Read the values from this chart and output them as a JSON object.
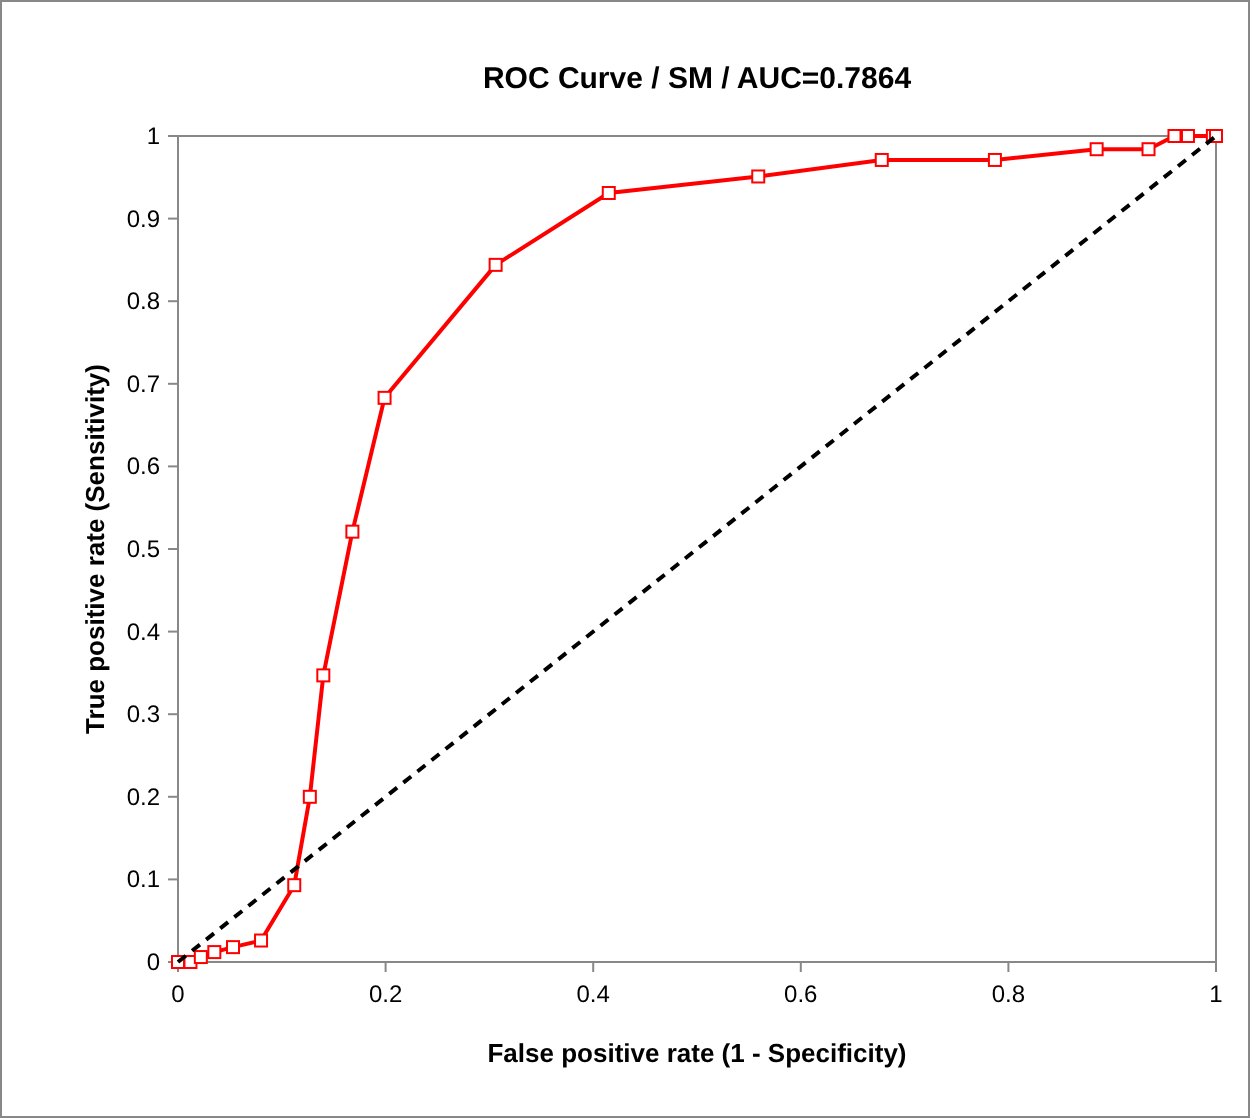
{
  "chart_data": {
    "type": "line",
    "title": "ROC Curve / SM / AUC=0.7864",
    "xlabel": "False positive rate (1 - Specificity)",
    "ylabel": "True positive rate (Sensitivity)",
    "xlim": [
      0,
      1
    ],
    "ylim": [
      0,
      1
    ],
    "xticks": [
      0,
      0.2,
      0.4,
      0.6,
      0.8,
      1
    ],
    "yticks": [
      0,
      0.1,
      0.2,
      0.3,
      0.4,
      0.5,
      0.6,
      0.7,
      0.8,
      0.9,
      1
    ],
    "grid": false,
    "series": [
      {
        "color": "#ff0000",
        "marker": "square",
        "line_style": "solid",
        "x": [
          0,
          0.012,
          0.022,
          0.035,
          0.053,
          0.08,
          0.112,
          0.127,
          0.14,
          0.168,
          0.199,
          0.306,
          0.415,
          0.559,
          0.678,
          0.787,
          0.885,
          0.935,
          0.96,
          0.973,
          0.997,
          1
        ],
        "values": [
          0,
          0,
          0.006,
          0.012,
          0.018,
          0.026,
          0.093,
          0.2,
          0.347,
          0.521,
          0.683,
          0.844,
          0.931,
          0.951,
          0.971,
          0.971,
          0.984,
          0.984,
          1,
          1,
          1,
          1
        ]
      },
      {
        "color": "#000000",
        "marker": "none",
        "line_style": "dashed",
        "x": [
          0,
          1
        ],
        "values": [
          0,
          1
        ]
      }
    ]
  }
}
